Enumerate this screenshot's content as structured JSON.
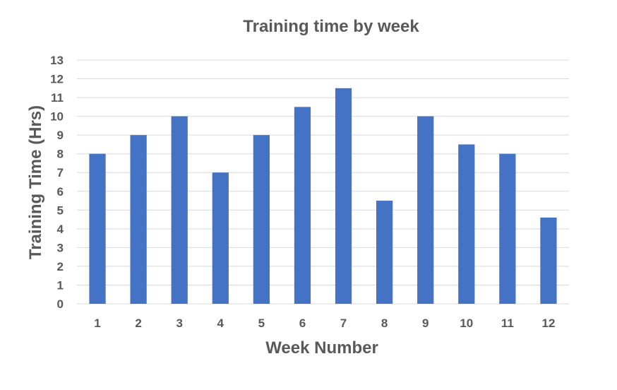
{
  "chart_data": {
    "type": "bar",
    "title": "Training time by week",
    "xlabel": "Week Number",
    "ylabel": "Training Time (Hrs)",
    "categories": [
      "1",
      "2",
      "3",
      "4",
      "5",
      "6",
      "7",
      "8",
      "9",
      "10",
      "11",
      "12"
    ],
    "values": [
      8,
      9,
      10,
      7,
      9,
      10.5,
      11.5,
      5.5,
      10,
      8.5,
      8,
      4.6
    ],
    "ylim": [
      0,
      13
    ],
    "yticks": [
      "0",
      "1",
      "2",
      "3",
      "4",
      "5",
      "6",
      "7",
      "8",
      "9",
      "10",
      "11",
      "12",
      "13"
    ],
    "grid": true,
    "legend": "none",
    "colors": {
      "bar": "#4472C4",
      "grid": "#d9d9d9",
      "axis": "#d9d9d9",
      "text": "#595959"
    }
  }
}
